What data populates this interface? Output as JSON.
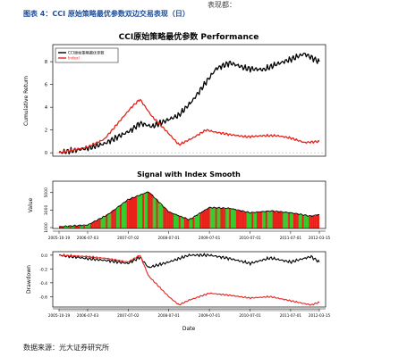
{
  "header": {
    "cut_text": "表现都：",
    "figure_title": "图表 4：CCI 原始策略最优参数双边交易表现（日）"
  },
  "footer": {
    "source": "数据来源：光大证券研究所"
  },
  "chart_data": [
    {
      "type": "line",
      "title": "CCI原始策略最优参数 Performance",
      "ylabel": "Cumulative Return",
      "ylim": [
        -0.3,
        9.5
      ],
      "yticks": [
        "0",
        "2",
        "4",
        "6",
        "8"
      ],
      "legend": {
        "placement": "top-left",
        "entries": [
          "CCI原始策略最优参数",
          "IndexI"
        ]
      },
      "series": [
        {
          "name": "CCI原始策略最优参数",
          "color": "#000000",
          "x": [
            "2005-10-19",
            "2006-07-03",
            "2006-12-01",
            "2007-04-01",
            "2007-08-01",
            "2007-10-16",
            "2008-02-01",
            "2008-06-01",
            "2008-10-01",
            "2009-02-01",
            "2009-06-01",
            "2009-09-01",
            "2010-01-01",
            "2010-06-01",
            "2010-11-01",
            "2011-03-01",
            "2011-07-01",
            "2011-11-01",
            "2012-03-15"
          ],
          "values": [
            0.0,
            0.4,
            0.8,
            1.4,
            2.0,
            2.6,
            2.3,
            2.8,
            3.3,
            4.6,
            6.2,
            7.4,
            7.9,
            7.4,
            7.3,
            7.8,
            8.2,
            8.7,
            8.0
          ]
        },
        {
          "name": "IndexI",
          "color": "#e8221b",
          "x": [
            "2005-10-19",
            "2006-07-03",
            "2006-12-01",
            "2007-04-01",
            "2007-08-01",
            "2007-10-16",
            "2008-02-01",
            "2008-06-01",
            "2008-10-01",
            "2009-02-01",
            "2009-06-01",
            "2009-09-01",
            "2010-01-01",
            "2010-06-01",
            "2010-11-01",
            "2011-03-01",
            "2011-07-01",
            "2011-11-01",
            "2012-03-15"
          ],
          "values": [
            0.0,
            0.5,
            1.2,
            2.6,
            4.0,
            4.7,
            3.2,
            2.0,
            0.7,
            1.3,
            2.0,
            1.8,
            1.6,
            1.4,
            1.5,
            1.5,
            1.3,
            0.9,
            1.0
          ]
        }
      ]
    },
    {
      "type": "bar",
      "title": "Signal with Index Smooth",
      "ylabel": "Value",
      "ylim": [
        900,
        6300
      ],
      "yticks": [
        "1000",
        "3000",
        "5000"
      ],
      "x": [
        "2005-10-19",
        "2006-07-03",
        "2007-01-02",
        "2007-07-02",
        "2008-01-01",
        "2008-07-01",
        "2009-01-01",
        "2009-07-01",
        "2010-01-01",
        "2010-07-01",
        "2011-01-01",
        "2011-07-01",
        "2012-01-01",
        "2012-03-15"
      ],
      "series": [
        {
          "name": "Index",
          "color": "#000000",
          "values": [
            1100,
            1300,
            2500,
            4200,
            5100,
            2800,
            1900,
            3300,
            3200,
            2700,
            2900,
            2700,
            2300,
            2500
          ]
        }
      ],
      "signal_colors": [
        "#e8221b",
        "#38c92c"
      ]
    },
    {
      "type": "line",
      "title": "",
      "xlabel": "Date",
      "ylabel": "Drawdown",
      "ylim": [
        -0.75,
        0.05
      ],
      "yticks": [
        "-0.6",
        "-0.4",
        "-0.2",
        "0.0"
      ],
      "x_ticks": [
        "2005-10-19",
        "2006-07-03",
        "2007-07-02",
        "2008-07-01",
        "2009-07-01",
        "2010-07-01",
        "2011-07-01",
        "2012-03-15"
      ],
      "series": [
        {
          "color": "#000000",
          "x": [
            "2005-10-19",
            "2006-07-03",
            "2007-01-02",
            "2007-07-02",
            "2007-10-16",
            "2008-01-01",
            "2008-07-01",
            "2008-10-01",
            "2009-01-01",
            "2009-07-01",
            "2010-01-01",
            "2010-07-01",
            "2011-01-01",
            "2011-07-01",
            "2012-01-01",
            "2012-03-15"
          ],
          "values": [
            0.0,
            -0.05,
            -0.08,
            -0.12,
            -0.03,
            -0.18,
            -0.1,
            -0.05,
            0.0,
            0.0,
            -0.05,
            -0.12,
            -0.04,
            -0.1,
            -0.02,
            -0.1
          ]
        },
        {
          "color": "#e8221b",
          "x": [
            "2005-10-19",
            "2006-07-03",
            "2007-01-02",
            "2007-07-02",
            "2007-10-16",
            "2008-01-01",
            "2008-07-01",
            "2008-10-01",
            "2009-01-01",
            "2009-07-01",
            "2010-01-01",
            "2010-07-01",
            "2011-01-01",
            "2011-07-01",
            "2012-01-01",
            "2012-03-15"
          ],
          "values": [
            0.0,
            -0.02,
            -0.05,
            -0.1,
            0.0,
            -0.3,
            -0.6,
            -0.72,
            -0.65,
            -0.55,
            -0.58,
            -0.62,
            -0.6,
            -0.66,
            -0.72,
            -0.68
          ]
        }
      ]
    }
  ]
}
